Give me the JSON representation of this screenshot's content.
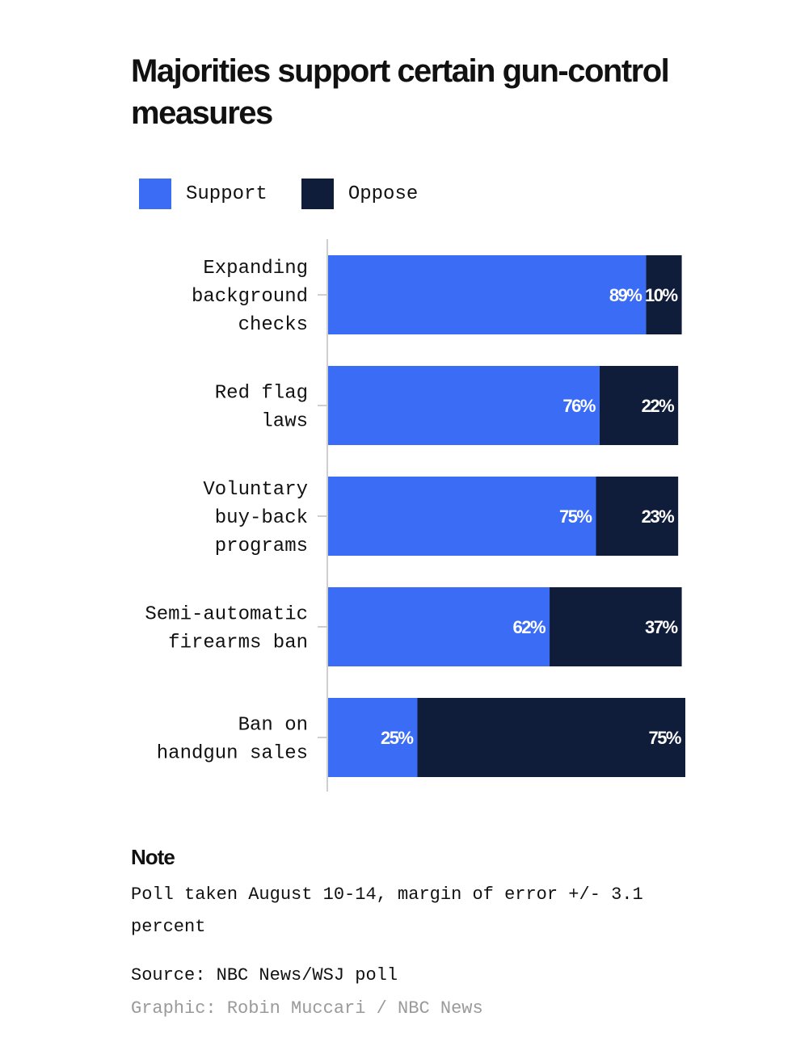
{
  "chart_data": {
    "type": "bar",
    "orientation": "horizontal",
    "stacked": true,
    "title": "Majorities support certain gun-control measures",
    "categories": [
      [
        "Expanding",
        "background",
        "checks"
      ],
      [
        "Red flag",
        "laws"
      ],
      [
        "Voluntary",
        "buy-back",
        "programs"
      ],
      [
        "Semi-automatic",
        "firearms ban"
      ],
      [
        "Ban on",
        "handgun sales"
      ]
    ],
    "series": [
      {
        "name": "Support",
        "color": "#3b6cf6",
        "values": [
          89,
          76,
          75,
          62,
          25
        ],
        "labels": [
          "89%",
          "76%",
          "75%",
          "62%",
          "25%"
        ]
      },
      {
        "name": "Oppose",
        "color": "#0f1c3a",
        "values": [
          10,
          22,
          23,
          37,
          75
        ],
        "labels": [
          "10%",
          "22%",
          "23%",
          "37%",
          "75%"
        ]
      }
    ],
    "xlim": [
      0,
      100
    ],
    "legend_position": "top-left",
    "grid": false
  },
  "legend": {
    "support_label": "Support",
    "oppose_label": "Oppose"
  },
  "note": {
    "heading": "Note",
    "text": "Poll taken August 10-14, margin of error +/- 3.1 percent"
  },
  "source": "Source: NBC News/WSJ poll",
  "credit": "Graphic: Robin Muccari / NBC News"
}
